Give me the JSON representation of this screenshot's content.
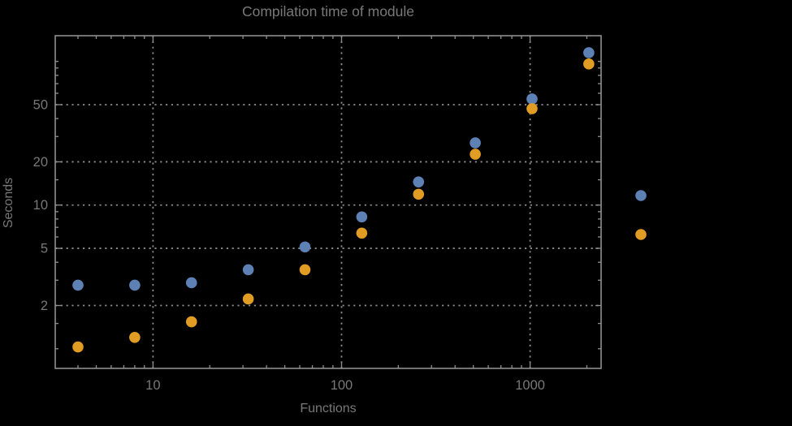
{
  "title": "Compilation time of module",
  "colors": {
    "background": "#000000",
    "frame": "#8f8f8f",
    "grid": "#8a8a8a",
    "text": "#787878",
    "series_blue": "#5e81b5",
    "series_orange": "#e19c24"
  },
  "chart_data": {
    "type": "scatter",
    "title": "Compilation time of module",
    "xlabel": "Functions",
    "ylabel": "Seconds",
    "x_scale": "log",
    "y_scale": "log",
    "xlim": [
      3.03,
      2380
    ],
    "ylim": [
      0.73,
      151
    ],
    "grid": "dotted",
    "legend_position": "right-outside",
    "x_major_ticks": [
      10,
      100,
      1000
    ],
    "x_major_tick_labels": [
      "10",
      "100",
      "1000"
    ],
    "x_minor_ticks": [
      4,
      5,
      6,
      7,
      8,
      9,
      20,
      30,
      40,
      50,
      60,
      70,
      80,
      90,
      200,
      300,
      400,
      500,
      600,
      700,
      800,
      900,
      2000
    ],
    "y_major_ticks": [
      50,
      20,
      10,
      5,
      2
    ],
    "y_major_tick_labels": [
      "50",
      "20",
      "10",
      "5",
      "2"
    ],
    "y_minor_ticks": [
      1,
      1.5,
      3,
      4,
      6,
      7,
      8,
      9,
      15,
      30,
      40,
      60,
      70,
      80,
      90,
      100
    ],
    "x": [
      4,
      8,
      16,
      32,
      64,
      128,
      256,
      512,
      1024,
      2048
    ],
    "series": [
      {
        "name": "blue",
        "color": "#5e81b5",
        "values": [
          2.77,
          2.77,
          2.88,
          3.55,
          5.11,
          8.28,
          14.5,
          27.1,
          54.8,
          115
        ]
      },
      {
        "name": "orange",
        "color": "#e19c24",
        "values": [
          1.03,
          1.2,
          1.54,
          2.22,
          3.55,
          6.38,
          11.9,
          22.6,
          46.9,
          96
        ]
      }
    ],
    "legend_markers": [
      {
        "series": "blue",
        "color": "#5e81b5"
      },
      {
        "series": "orange",
        "color": "#e19c24"
      }
    ]
  }
}
